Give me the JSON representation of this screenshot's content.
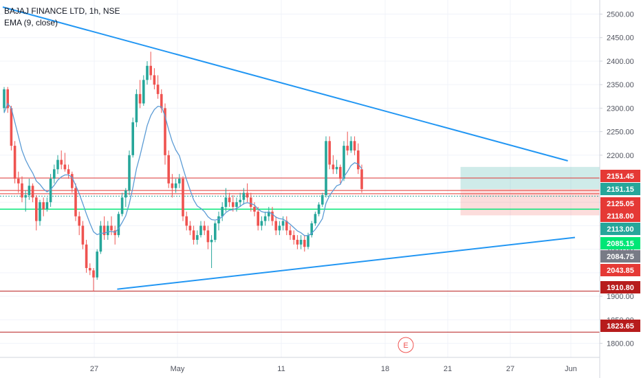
{
  "chart_data": {
    "type": "candlestick",
    "title": "BAJAJ FINANCE LTD, 1h, NSE",
    "indicator": "EMA (9, close)",
    "ylim": [
      1770,
      2530
    ],
    "y_ticks": [
      {
        "value": 2500,
        "label": "2500.00"
      },
      {
        "value": 2450,
        "label": "2450.00"
      },
      {
        "value": 2400,
        "label": "2400.00"
      },
      {
        "value": 2350,
        "label": "2350.00"
      },
      {
        "value": 2300,
        "label": "2300.00"
      },
      {
        "value": 2250,
        "label": "2250.00"
      },
      {
        "value": 2200,
        "label": "2200.00"
      },
      {
        "value": 2150,
        "label": "2150.00"
      },
      {
        "value": 2100,
        "label": "2100.00"
      },
      {
        "value": 2050,
        "label": "2050.00"
      },
      {
        "value": 2000,
        "label": "2000.00"
      },
      {
        "value": 1950,
        "label": "1950.00"
      },
      {
        "value": 1900,
        "label": "1900.00"
      },
      {
        "value": 1850,
        "label": "1850.00"
      },
      {
        "value": 1800,
        "label": "1800.00"
      }
    ],
    "x_ticks": [
      "27",
      "May",
      "11",
      "18",
      "21",
      "27",
      "Jun"
    ],
    "price_labels": [
      {
        "value": 2151.45,
        "label": "2151.45",
        "color": "#e53935"
      },
      {
        "value": 2151.15,
        "label": "2151.15",
        "color": "#26a69a"
      },
      {
        "value": 2125.05,
        "label": "2125.05",
        "color": "#e53935"
      },
      {
        "value": 2118.0,
        "label": "2118.00",
        "color": "#e53935"
      },
      {
        "value": 2113.0,
        "label": "2113.00",
        "color": "#26a69a"
      },
      {
        "value": 2085.15,
        "label": "2085.15",
        "color": "#00e676"
      },
      {
        "value": 2084.75,
        "label": "2084.75",
        "color": "#787b86"
      },
      {
        "value": 2043.85,
        "label": "2043.85",
        "color": "#e53935"
      },
      {
        "value": 1910.8,
        "label": "1910.80",
        "color": "#b71c1c"
      },
      {
        "value": 1823.65,
        "label": "1823.65",
        "color": "#b71c1c"
      }
    ],
    "horizontal_lines": [
      {
        "value": 2151.45,
        "color": "#e53935"
      },
      {
        "value": 2125.05,
        "color": "#e53935"
      },
      {
        "value": 2118.0,
        "color": "#e53935"
      },
      {
        "value": 2085.15,
        "color": "#00e676"
      },
      {
        "value": 1910.8,
        "color": "#b71c1c"
      },
      {
        "value": 1823.65,
        "color": "#b71c1c"
      }
    ],
    "trendlines": [
      {
        "from": [
          0,
          2515
        ],
        "to": [
          158,
          2188
        ],
        "color": "#2196f3"
      },
      {
        "from": [
          32,
          1915
        ],
        "to": [
          160,
          2025
        ],
        "color": "#2196f3"
      }
    ],
    "position_box": {
      "x_start": 128,
      "x_end": 176,
      "entry": 2128,
      "target": 2175,
      "stop": 2072
    },
    "event_marker": "E",
    "colors": {
      "up": "#26a69a",
      "down": "#ef5350",
      "ema": "#5b9bd5",
      "axis_text": "#50535e"
    },
    "candles": [
      [
        2300,
        2345,
        2290,
        2340
      ],
      [
        2340,
        2345,
        2290,
        2300
      ],
      [
        2300,
        2305,
        2210,
        2220
      ],
      [
        2220,
        2230,
        2140,
        2150
      ],
      [
        2150,
        2165,
        2120,
        2140
      ],
      [
        2140,
        2155,
        2100,
        2110
      ],
      [
        2110,
        2125,
        2080,
        2115
      ],
      [
        2115,
        2150,
        2105,
        2135
      ],
      [
        2135,
        2140,
        2100,
        2110
      ],
      [
        2110,
        2115,
        2040,
        2060
      ],
      [
        2060,
        2105,
        2050,
        2100
      ],
      [
        2100,
        2110,
        2070,
        2085
      ],
      [
        2085,
        2110,
        2080,
        2100
      ],
      [
        2100,
        2160,
        2090,
        2150
      ],
      [
        2150,
        2180,
        2140,
        2170
      ],
      [
        2170,
        2200,
        2160,
        2190
      ],
      [
        2190,
        2210,
        2170,
        2180
      ],
      [
        2180,
        2205,
        2165,
        2170
      ],
      [
        2170,
        2180,
        2150,
        2160
      ],
      [
        2160,
        2165,
        2120,
        2130
      ],
      [
        2130,
        2140,
        2060,
        2070
      ],
      [
        2070,
        2080,
        2030,
        2050
      ],
      [
        2050,
        2060,
        2000,
        2010
      ],
      [
        2010,
        2020,
        1950,
        1960
      ],
      [
        1960,
        1970,
        1945,
        1955
      ],
      [
        1955,
        1960,
        1910,
        1940
      ],
      [
        1940,
        2000,
        1935,
        1995
      ],
      [
        1995,
        2060,
        1990,
        2050
      ],
      [
        2050,
        2070,
        2020,
        2030
      ],
      [
        2030,
        2060,
        2020,
        2050
      ],
      [
        2050,
        2070,
        2030,
        2040
      ],
      [
        2040,
        2050,
        2010,
        2030
      ],
      [
        2030,
        2080,
        2025,
        2075
      ],
      [
        2075,
        2120,
        2070,
        2110
      ],
      [
        2110,
        2130,
        2090,
        2125
      ],
      [
        2125,
        2210,
        2115,
        2200
      ],
      [
        2200,
        2280,
        2195,
        2270
      ],
      [
        2270,
        2340,
        2260,
        2330
      ],
      [
        2330,
        2360,
        2300,
        2310
      ],
      [
        2310,
        2370,
        2305,
        2360
      ],
      [
        2360,
        2400,
        2350,
        2390
      ],
      [
        2390,
        2420,
        2360,
        2370
      ],
      [
        2370,
        2385,
        2340,
        2350
      ],
      [
        2350,
        2370,
        2320,
        2330
      ],
      [
        2330,
        2340,
        2290,
        2300
      ],
      [
        2300,
        2310,
        2180,
        2200
      ],
      [
        2200,
        2210,
        2130,
        2140
      ],
      [
        2140,
        2160,
        2110,
        2130
      ],
      [
        2130,
        2150,
        2120,
        2140
      ],
      [
        2140,
        2160,
        2130,
        2150
      ],
      [
        2150,
        2155,
        2060,
        2070
      ],
      [
        2070,
        2080,
        2040,
        2050
      ],
      [
        2050,
        2060,
        2030,
        2040
      ],
      [
        2040,
        2050,
        2010,
        2020
      ],
      [
        2020,
        2040,
        2010,
        2030
      ],
      [
        2030,
        2060,
        2025,
        2050
      ],
      [
        2050,
        2060,
        2030,
        2040
      ],
      [
        2040,
        2050,
        2000,
        2015
      ],
      [
        2015,
        2030,
        1960,
        2020
      ],
      [
        2020,
        2060,
        2015,
        2055
      ],
      [
        2055,
        2080,
        2040,
        2070
      ],
      [
        2070,
        2100,
        2060,
        2090
      ],
      [
        2090,
        2130,
        2080,
        2110
      ],
      [
        2110,
        2120,
        2090,
        2100
      ],
      [
        2100,
        2115,
        2080,
        2090
      ],
      [
        2090,
        2110,
        2080,
        2100
      ],
      [
        2100,
        2120,
        2090,
        2105
      ],
      [
        2105,
        2130,
        2095,
        2120
      ],
      [
        2120,
        2140,
        2100,
        2110
      ],
      [
        2110,
        2120,
        2080,
        2090
      ],
      [
        2090,
        2100,
        2070,
        2080
      ],
      [
        2080,
        2090,
        2040,
        2050
      ],
      [
        2050,
        2070,
        2040,
        2060
      ],
      [
        2060,
        2080,
        2050,
        2070
      ],
      [
        2070,
        2090,
        2060,
        2080
      ],
      [
        2080,
        2090,
        2050,
        2060
      ],
      [
        2060,
        2070,
        2030,
        2040
      ],
      [
        2040,
        2060,
        2030,
        2050
      ],
      [
        2050,
        2070,
        2040,
        2060
      ],
      [
        2060,
        2070,
        2030,
        2040
      ],
      [
        2040,
        2050,
        2020,
        2030
      ],
      [
        2030,
        2040,
        2010,
        2020
      ],
      [
        2020,
        2030,
        2000,
        2010
      ],
      [
        2010,
        2030,
        2000,
        2020
      ],
      [
        2020,
        2030,
        1995,
        2005
      ],
      [
        2005,
        2035,
        2000,
        2030
      ],
      [
        2030,
        2060,
        2025,
        2055
      ],
      [
        2055,
        2080,
        2050,
        2075
      ],
      [
        2075,
        2100,
        2070,
        2095
      ],
      [
        2095,
        2120,
        2090,
        2115
      ],
      [
        2115,
        2240,
        2110,
        2230
      ],
      [
        2230,
        2240,
        2170,
        2180
      ],
      [
        2180,
        2200,
        2160,
        2170
      ],
      [
        2170,
        2190,
        2160,
        2175
      ],
      [
        2175,
        2180,
        2140,
        2150
      ],
      [
        2150,
        2230,
        2145,
        2220
      ],
      [
        2220,
        2250,
        2200,
        2210
      ],
      [
        2210,
        2240,
        2205,
        2230
      ],
      [
        2230,
        2240,
        2200,
        2210
      ],
      [
        2210,
        2225,
        2160,
        2170
      ],
      [
        2170,
        2180,
        2120,
        2128
      ]
    ],
    "ema": [
      2290,
      2310,
      2300,
      2270,
      2240,
      2210,
      2190,
      2175,
      2162,
      2145,
      2138,
      2128,
      2122,
      2127,
      2136,
      2147,
      2154,
      2158,
      2158,
      2153,
      2136,
      2118,
      2097,
      2075,
      2055,
      2037,
      2031,
      2034,
      2034,
      2037,
      2038,
      2036,
      2044,
      2057,
      2071,
      2097,
      2131,
      2171,
      2199,
      2231,
      2263,
      2284,
      2297,
      2304,
      2303,
      2283,
      2254,
      2229,
      2211,
      2199,
      2173,
      2148,
      2126,
      2105,
      2092,
      2087,
      2080,
      2069,
      2063,
      2062,
      2064,
      2069,
      2078,
      2083,
      2084,
      2087,
      2091,
      2097,
      2099,
      2097,
      2094,
      2085,
      2080,
      2078,
      2079,
      2075,
      2068,
      2065,
      2064,
      2059,
      2053,
      2046,
      2039,
      2035,
      2029,
      2029,
      2034,
      2042,
      2053,
      2065,
      2098,
      2114,
      2125,
      2135,
      2138,
      2154,
      2165,
      2178,
      2184,
      2181,
      2171
    ]
  }
}
